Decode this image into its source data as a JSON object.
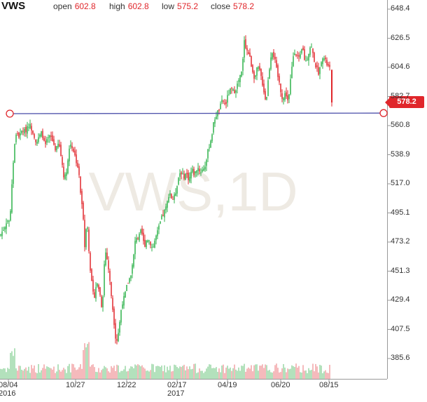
{
  "header": {
    "symbol": "VWS",
    "open_label": "open",
    "open_value": "602.8",
    "high_label": "high",
    "high_value": "602.8",
    "low_label": "low",
    "low_value": "575.2",
    "close_label": "close",
    "close_value": "578.2"
  },
  "watermark": "VWS,1D",
  "last_price_badge": "578.2",
  "colors": {
    "up": "#2db24a",
    "down": "#e0262b",
    "trendline": "#4b4faa",
    "vol_up": "#9ad7a5",
    "vol_down": "#f2a3a5"
  },
  "chart_data": {
    "type": "candlestick",
    "title": "",
    "xlabel": "",
    "ylabel": "",
    "ylim": [
      375,
      650
    ],
    "y_ticks": [
      "648.4",
      "626.5",
      "604.6",
      "582.7",
      "560.8",
      "538.9",
      "517.0",
      "495.1",
      "473.2",
      "451.3",
      "429.4",
      "407.5",
      "385.6"
    ],
    "x_ticks": [
      {
        "label": "08/04",
        "sub": "2016"
      },
      {
        "label": "10/27",
        "sub": ""
      },
      {
        "label": "12/22",
        "sub": ""
      },
      {
        "label": "02/17",
        "sub": "2017"
      },
      {
        "label": "04/19",
        "sub": ""
      },
      {
        "label": "06/20",
        "sub": ""
      },
      {
        "label": "08/15",
        "sub": ""
      }
    ],
    "trendline": {
      "value": 568.8
    },
    "last": {
      "open": 602.8,
      "high": 602.8,
      "low": 575.2,
      "close": 578.2
    },
    "close_path": [
      [
        0,
        478
      ],
      [
        6,
        484
      ],
      [
        10,
        490
      ],
      [
        14,
        488
      ],
      [
        18,
        527
      ],
      [
        21,
        548
      ],
      [
        24,
        556
      ],
      [
        28,
        552
      ],
      [
        32,
        558
      ],
      [
        36,
        556
      ],
      [
        40,
        562
      ],
      [
        44,
        560
      ],
      [
        48,
        555
      ],
      [
        52,
        548
      ],
      [
        56,
        552
      ],
      [
        60,
        556
      ],
      [
        64,
        545
      ],
      [
        68,
        550
      ],
      [
        72,
        553
      ],
      [
        76,
        548
      ],
      [
        80,
        542
      ],
      [
        84,
        548
      ],
      [
        88,
        535
      ],
      [
        92,
        520
      ],
      [
        96,
        530
      ],
      [
        100,
        548
      ],
      [
        104,
        544
      ],
      [
        108,
        536
      ],
      [
        112,
        528
      ],
      [
        116,
        505
      ],
      [
        119,
        492
      ],
      [
        121,
        470
      ],
      [
        124,
        492
      ],
      [
        127,
        468
      ],
      [
        130,
        446
      ],
      [
        134,
        430
      ],
      [
        138,
        443
      ],
      [
        142,
        437
      ],
      [
        146,
        422
      ],
      [
        150,
        468
      ],
      [
        154,
        458
      ],
      [
        158,
        438
      ],
      [
        162,
        418
      ],
      [
        166,
        397
      ],
      [
        170,
        408
      ],
      [
        174,
        427
      ],
      [
        178,
        432
      ],
      [
        182,
        442
      ],
      [
        186,
        447
      ],
      [
        190,
        458
      ],
      [
        194,
        478
      ],
      [
        198,
        476
      ],
      [
        202,
        482
      ],
      [
        206,
        470
      ],
      [
        210,
        476
      ],
      [
        214,
        474
      ],
      [
        218,
        468
      ],
      [
        222,
        476
      ],
      [
        226,
        482
      ],
      [
        230,
        490
      ],
      [
        234,
        495
      ],
      [
        238,
        500
      ],
      [
        242,
        512
      ],
      [
        246,
        505
      ],
      [
        250,
        508
      ],
      [
        254,
        520
      ],
      [
        258,
        527
      ],
      [
        262,
        522
      ],
      [
        266,
        525
      ],
      [
        270,
        520
      ],
      [
        274,
        528
      ],
      [
        278,
        524
      ],
      [
        282,
        530
      ],
      [
        286,
        526
      ],
      [
        290,
        528
      ],
      [
        294,
        532
      ],
      [
        298,
        544
      ],
      [
        302,
        552
      ],
      [
        306,
        565
      ],
      [
        310,
        570
      ],
      [
        314,
        574
      ],
      [
        318,
        580
      ],
      [
        322,
        576
      ],
      [
        326,
        584
      ],
      [
        330,
        588
      ],
      [
        334,
        586
      ],
      [
        338,
        590
      ],
      [
        342,
        596
      ],
      [
        346,
        602
      ],
      [
        349,
        626
      ],
      [
        352,
        618
      ],
      [
        356,
        614
      ],
      [
        360,
        604
      ],
      [
        364,
        596
      ],
      [
        368,
        605
      ],
      [
        372,
        600
      ],
      [
        376,
        590
      ],
      [
        380,
        578
      ],
      [
        384,
        600
      ],
      [
        388,
        618
      ],
      [
        392,
        612
      ],
      [
        396,
        600
      ],
      [
        400,
        590
      ],
      [
        404,
        580
      ],
      [
        408,
        586
      ],
      [
        412,
        578
      ],
      [
        416,
        600
      ],
      [
        420,
        618
      ],
      [
        424,
        614
      ],
      [
        428,
        610
      ],
      [
        432,
        620
      ],
      [
        436,
        608
      ],
      [
        440,
        614
      ],
      [
        444,
        622
      ],
      [
        448,
        612
      ],
      [
        452,
        604
      ],
      [
        456,
        600
      ],
      [
        460,
        614
      ],
      [
        464,
        610
      ],
      [
        468,
        606
      ],
      [
        472,
        602.8
      ],
      [
        474,
        578.2
      ]
    ],
    "volume_scale": "relative"
  }
}
